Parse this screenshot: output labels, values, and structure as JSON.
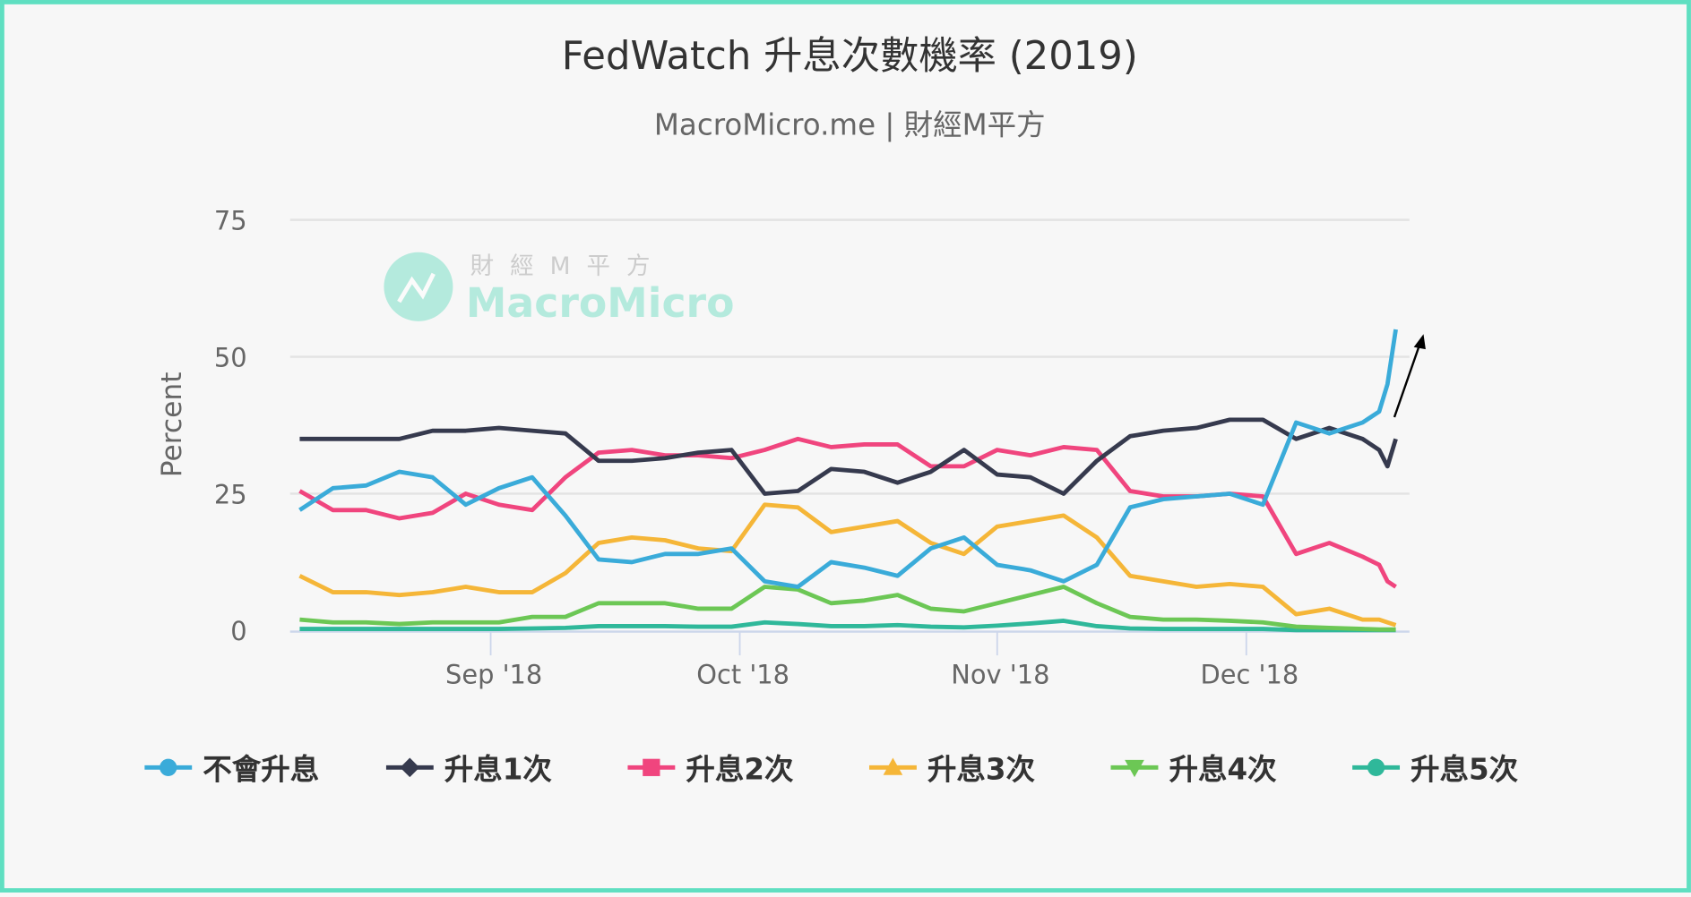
{
  "chart_data": {
    "type": "line",
    "title": "FedWatch 升息次數機率 (2019)",
    "subtitle": "MacroMicro.me | 財經M平方",
    "ylabel": "Percent",
    "xlabel": "",
    "ylim": [
      0,
      75
    ],
    "yticks": [
      "0",
      "25",
      "50",
      "75"
    ],
    "xticks": [
      {
        "date": "2018-09-01",
        "label": "Sep '18"
      },
      {
        "date": "2018-10-01",
        "label": "Oct '18"
      },
      {
        "date": "2018-11-01",
        "label": "Nov '18"
      },
      {
        "date": "2018-12-01",
        "label": "Dec '18"
      }
    ],
    "grid": true,
    "legend_position": "bottom",
    "watermark": {
      "line1": "財 經 M 平 方",
      "line2": "MacroMicro"
    },
    "x": [
      "2018-08-09",
      "2018-08-13",
      "2018-08-17",
      "2018-08-21",
      "2018-08-25",
      "2018-08-29",
      "2018-09-02",
      "2018-09-06",
      "2018-09-10",
      "2018-09-14",
      "2018-09-18",
      "2018-09-22",
      "2018-09-26",
      "2018-09-30",
      "2018-10-04",
      "2018-10-08",
      "2018-10-12",
      "2018-10-16",
      "2018-10-20",
      "2018-10-24",
      "2018-10-28",
      "2018-11-01",
      "2018-11-05",
      "2018-11-09",
      "2018-11-13",
      "2018-11-17",
      "2018-11-21",
      "2018-11-25",
      "2018-11-29",
      "2018-12-03",
      "2018-12-07",
      "2018-12-11",
      "2018-12-15",
      "2018-12-17",
      "2018-12-18",
      "2018-12-19"
    ],
    "series": [
      {
        "name": "不會升息",
        "color": "#3aabd9",
        "marker": "circle",
        "values": [
          22,
          26,
          26.5,
          29,
          28,
          23,
          26,
          28,
          21,
          13,
          12.5,
          14,
          14,
          15,
          9,
          8,
          12.5,
          11.5,
          10,
          15,
          17,
          12,
          11,
          9,
          12,
          22.5,
          24,
          24.5,
          25,
          23,
          38,
          36,
          38,
          40,
          45,
          55
        ]
      },
      {
        "name": "升息1次",
        "color": "#363a4e",
        "marker": "diamond",
        "values": [
          35,
          35,
          35,
          35,
          36.5,
          36.5,
          37,
          36.5,
          36,
          31,
          31,
          31.5,
          32.5,
          33,
          25,
          25.5,
          29.5,
          29,
          27,
          29,
          33,
          28.5,
          28,
          25,
          31,
          35.5,
          36.5,
          37,
          38.5,
          38.5,
          35,
          37,
          35,
          33,
          30,
          35
        ]
      },
      {
        "name": "升息2次",
        "color": "#f0457e",
        "marker": "square",
        "values": [
          25.5,
          22,
          22,
          20.5,
          21.5,
          25,
          23,
          22,
          28,
          32.5,
          33,
          32,
          32,
          31.5,
          33,
          35,
          33.5,
          34,
          34,
          30,
          30,
          33,
          32,
          33.5,
          33,
          25.5,
          24.5,
          24.5,
          25,
          24.5,
          14,
          16,
          13.5,
          12,
          9,
          8
        ]
      },
      {
        "name": "升息3次",
        "color": "#f5b638",
        "marker": "triangle",
        "values": [
          10,
          7,
          7,
          6.5,
          7,
          8,
          7,
          7,
          10.5,
          16,
          17,
          16.5,
          15,
          14.5,
          23,
          22.5,
          18,
          19,
          20,
          16,
          14,
          19,
          20,
          21,
          17,
          10,
          9,
          8,
          8.5,
          8,
          3,
          4,
          2,
          2,
          1.5,
          1
        ]
      },
      {
        "name": "升息4次",
        "color": "#6cc755",
        "marker": "triangle-down",
        "values": [
          2,
          1.5,
          1.5,
          1.2,
          1.5,
          1.5,
          1.5,
          2.5,
          2.5,
          5,
          5,
          5,
          4,
          4,
          8,
          7.5,
          5,
          5.5,
          6.5,
          4,
          3.5,
          5,
          6.5,
          8,
          5,
          2.5,
          2,
          2,
          1.8,
          1.5,
          0.7,
          0.5,
          0.3,
          0.2,
          0.2,
          0.2
        ]
      },
      {
        "name": "升息5次",
        "color": "#2fb89a",
        "marker": "circle",
        "values": [
          0.3,
          0.3,
          0.3,
          0.3,
          0.3,
          0.3,
          0.3,
          0.4,
          0.5,
          0.8,
          0.8,
          0.8,
          0.7,
          0.7,
          1.5,
          1.2,
          0.8,
          0.8,
          1,
          0.7,
          0.6,
          0.9,
          1.3,
          1.8,
          0.8,
          0.4,
          0.3,
          0.3,
          0.3,
          0.3,
          0.1,
          0.1,
          0.1,
          0.1,
          0.1,
          0.1
        ]
      }
    ]
  }
}
